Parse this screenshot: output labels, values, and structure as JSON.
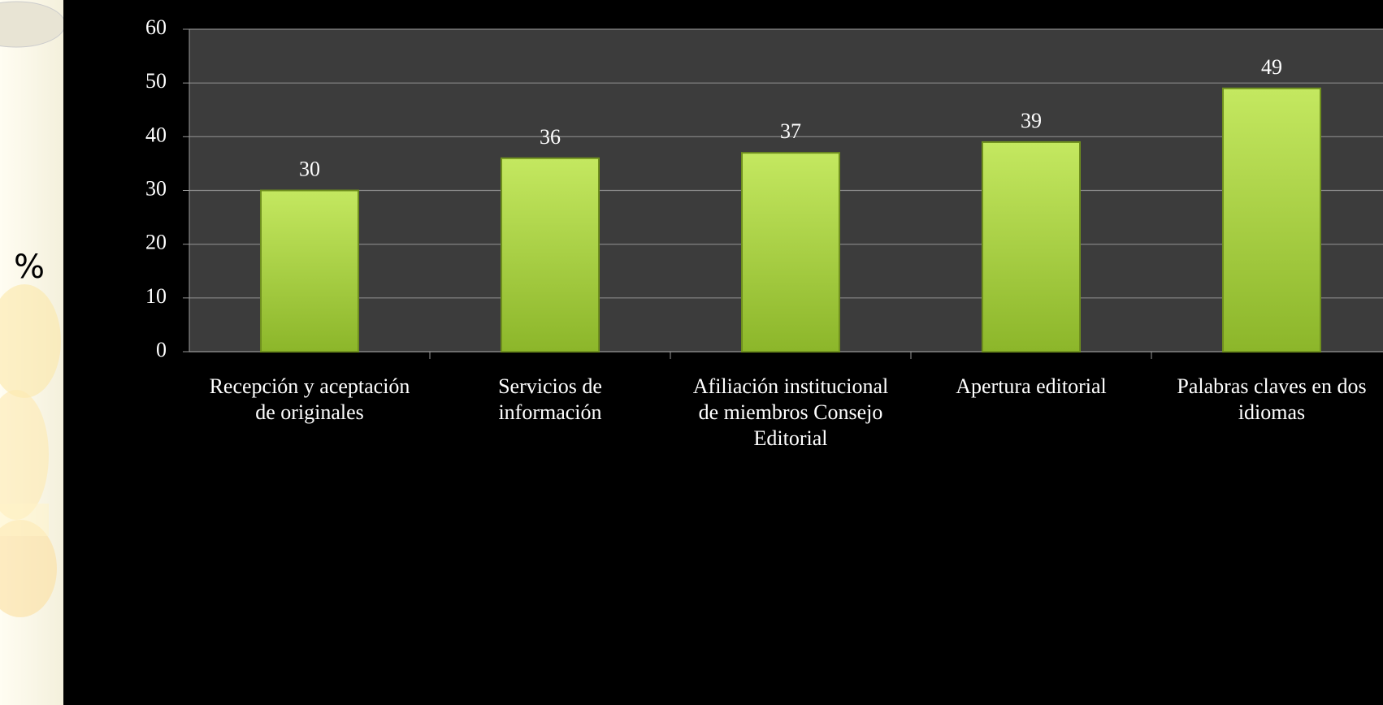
{
  "chart_data": {
    "type": "bar",
    "ylabel": "%",
    "categories": [
      "Recepción y aceptación de originales",
      "Servicios de información",
      "Afiliación institucional de miembros Consejo Editorial",
      "Apertura editorial",
      "Palabras claves en dos idiomas"
    ],
    "values": [
      30,
      36,
      37,
      39,
      49
    ],
    "color": "#9cc62b",
    "ylim": [
      0,
      60
    ],
    "yticks": [
      0,
      10,
      20,
      30,
      40,
      50,
      60
    ],
    "grid": true
  }
}
